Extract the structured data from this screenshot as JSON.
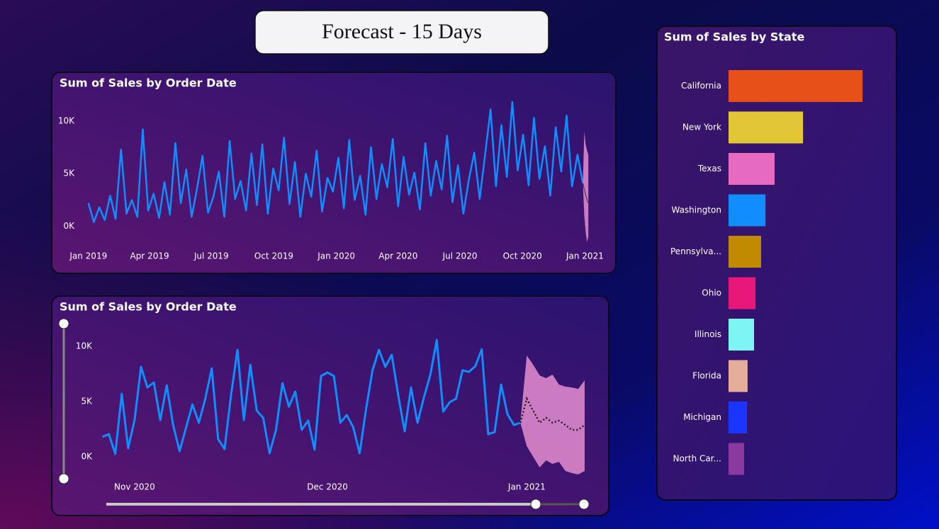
{
  "header": {
    "title": "Forecast - 15 Days"
  },
  "chart_data": [
    {
      "type": "line",
      "title": "Sum of Sales by Order Date",
      "x": [
        0,
        8,
        16,
        24,
        32,
        40,
        48,
        56,
        64,
        72,
        80,
        88,
        96,
        104,
        112,
        120,
        128,
        136,
        144,
        152,
        160,
        168,
        176,
        184,
        192,
        200,
        208,
        216,
        224,
        232,
        240,
        248,
        256,
        264,
        272,
        280,
        288,
        296,
        304,
        312,
        320,
        328,
        336,
        344,
        352,
        360,
        368,
        376,
        384,
        392,
        400,
        408,
        416,
        424,
        432,
        440,
        448,
        456,
        464,
        472,
        480,
        488,
        496,
        504,
        512,
        520,
        528,
        536,
        544,
        552,
        560,
        568,
        576,
        584,
        592,
        600,
        608,
        616,
        624,
        632,
        640,
        648,
        656,
        664,
        672,
        680,
        688,
        696,
        704,
        712,
        720,
        728
      ],
      "values": [
        2200,
        400,
        1800,
        600,
        2900,
        700,
        7300,
        1200,
        2500,
        900,
        9200,
        1500,
        3100,
        800,
        4200,
        1100,
        7900,
        2200,
        5400,
        900,
        3600,
        6700,
        1300,
        2800,
        5200,
        900,
        8100,
        2600,
        4300,
        1500,
        6900,
        2000,
        7800,
        1200,
        5500,
        3400,
        8400,
        2100,
        6100,
        900,
        5000,
        2800,
        7200,
        1400,
        4600,
        3300,
        6500,
        1700,
        8200,
        2500,
        4800,
        1100,
        7500,
        2600,
        5900,
        3700,
        8300,
        1900,
        6600,
        3000,
        5100,
        1600,
        7900,
        2900,
        6200,
        3500,
        8600,
        2300,
        5800,
        1200,
        4400,
        7000,
        2600,
        6800,
        11100,
        3800,
        9600,
        4700,
        11800,
        5300,
        8700,
        3900,
        10300,
        4500,
        7600,
        2900,
        9400,
        5200,
        10500,
        3800,
        6800,
        4100
      ],
      "color": "#118dff",
      "forecast": {
        "x": [
          728,
          730,
          732,
          734,
          736
        ],
        "values": [
          4100,
          3500,
          3000,
          2500,
          2200
        ],
        "upper": [
          4100,
          9000,
          7800,
          7200,
          6800
        ],
        "lower": [
          4100,
          1000,
          -500,
          -1500,
          -1000
        ],
        "color": "#333333",
        "band_color": "#d884c8"
      },
      "xlim": [
        -5,
        741
      ],
      "xticks": [
        {
          "value": 0,
          "label": "Jan 2019"
        },
        {
          "value": 90,
          "label": "Apr 2019"
        },
        {
          "value": 181,
          "label": "Jul 2019"
        },
        {
          "value": 273,
          "label": "Oct 2019"
        },
        {
          "value": 365,
          "label": "Jan 2020"
        },
        {
          "value": 456,
          "label": "Apr 2020"
        },
        {
          "value": 547,
          "label": "Jul 2020"
        },
        {
          "value": 639,
          "label": "Oct 2020"
        },
        {
          "value": 731,
          "label": "Jan 2021"
        }
      ],
      "ylim": [
        -700,
        11400
      ],
      "yticks": [
        {
          "value": 0,
          "label": "0K"
        },
        {
          "value": 5000,
          "label": "5K"
        },
        {
          "value": 10000,
          "label": "10K"
        }
      ]
    },
    {
      "type": "line",
      "title": "Sum of Sales by Order Date",
      "x": [
        -5,
        -4,
        -3,
        -2,
        -1,
        0,
        1,
        2,
        3,
        4,
        5,
        6,
        7,
        8,
        9,
        10,
        11,
        12,
        13,
        14,
        15,
        16,
        17,
        18,
        19,
        20,
        21,
        22,
        23,
        24,
        25,
        26,
        27,
        28,
        29,
        30,
        31,
        32,
        33,
        34,
        35,
        36,
        37,
        38,
        39,
        40,
        41,
        42,
        43,
        44,
        45,
        46,
        47,
        48,
        49,
        50,
        51,
        52,
        53,
        54,
        55,
        56,
        57,
        58,
        59,
        60
      ],
      "values": [
        1800,
        2050,
        260,
        5700,
        770,
        3330,
        8140,
        6280,
        6730,
        3330,
        6470,
        2880,
        510,
        2630,
        4740,
        3080,
        5260,
        8010,
        1600,
        710,
        5580,
        9680,
        3330,
        8330,
        4170,
        3530,
        320,
        2440,
        6670,
        4550,
        5900,
        2440,
        3270,
        640,
        7310,
        7630,
        7310,
        3080,
        3780,
        2690,
        320,
        4290,
        7820,
        9680,
        8140,
        9230,
        5580,
        2310,
        6280,
        3080,
        5380,
        7440,
        10580,
        4100,
        4940,
        5260,
        7820,
        7690,
        8210,
        9740,
        2050,
        2240,
        6540,
        3850,
        2880,
        3080
      ],
      "color": "#118dff",
      "forecast": {
        "x": [
          60,
          61,
          62,
          63,
          64,
          65,
          66,
          67,
          68,
          69,
          70
        ],
        "values": [
          3080,
          5260,
          4170,
          3080,
          3530,
          3080,
          3270,
          2880,
          2440,
          2440,
          2880
        ],
        "upper": [
          3080,
          9170,
          8330,
          7370,
          7120,
          7440,
          6540,
          6350,
          6280,
          6150,
          6920
        ],
        "lower": [
          3080,
          960,
          0,
          -960,
          -320,
          -640,
          -450,
          -1280,
          -1470,
          -1600,
          -1280
        ],
        "color": "#222222",
        "band_color": "#d884c8"
      },
      "xlim": [
        -5.5,
        70
      ],
      "xticks": [
        {
          "value": 0,
          "label": "Nov 2020"
        },
        {
          "value": 30,
          "label": "Dec 2020"
        },
        {
          "value": 61,
          "label": "Jan 2021"
        }
      ],
      "ylim": [
        -2240,
        11860
      ],
      "yticks": [
        {
          "value": 0,
          "label": "0K"
        },
        {
          "value": 5000,
          "label": "5K"
        },
        {
          "value": 10000,
          "label": "10K"
        }
      ]
    },
    {
      "type": "hbar",
      "title": "Sum of Sales by State",
      "categories": [
        "California",
        "New York",
        "Texas",
        "Washington",
        "Pennsylva...",
        "Ohio",
        "Illinois",
        "Florida",
        "Michigan",
        "North Car..."
      ],
      "values": [
        457000,
        254000,
        157000,
        126000,
        111000,
        92000,
        87000,
        65000,
        63000,
        53000
      ],
      "colors": [
        "#e8501a",
        "#e2c636",
        "#e66bc0",
        "#118dff",
        "#c28a00",
        "#e8177a",
        "#7ef4f4",
        "#e4ad9c",
        "#1a35ff",
        "#8a3a9e"
      ],
      "xlim": [
        0,
        500000
      ]
    }
  ]
}
